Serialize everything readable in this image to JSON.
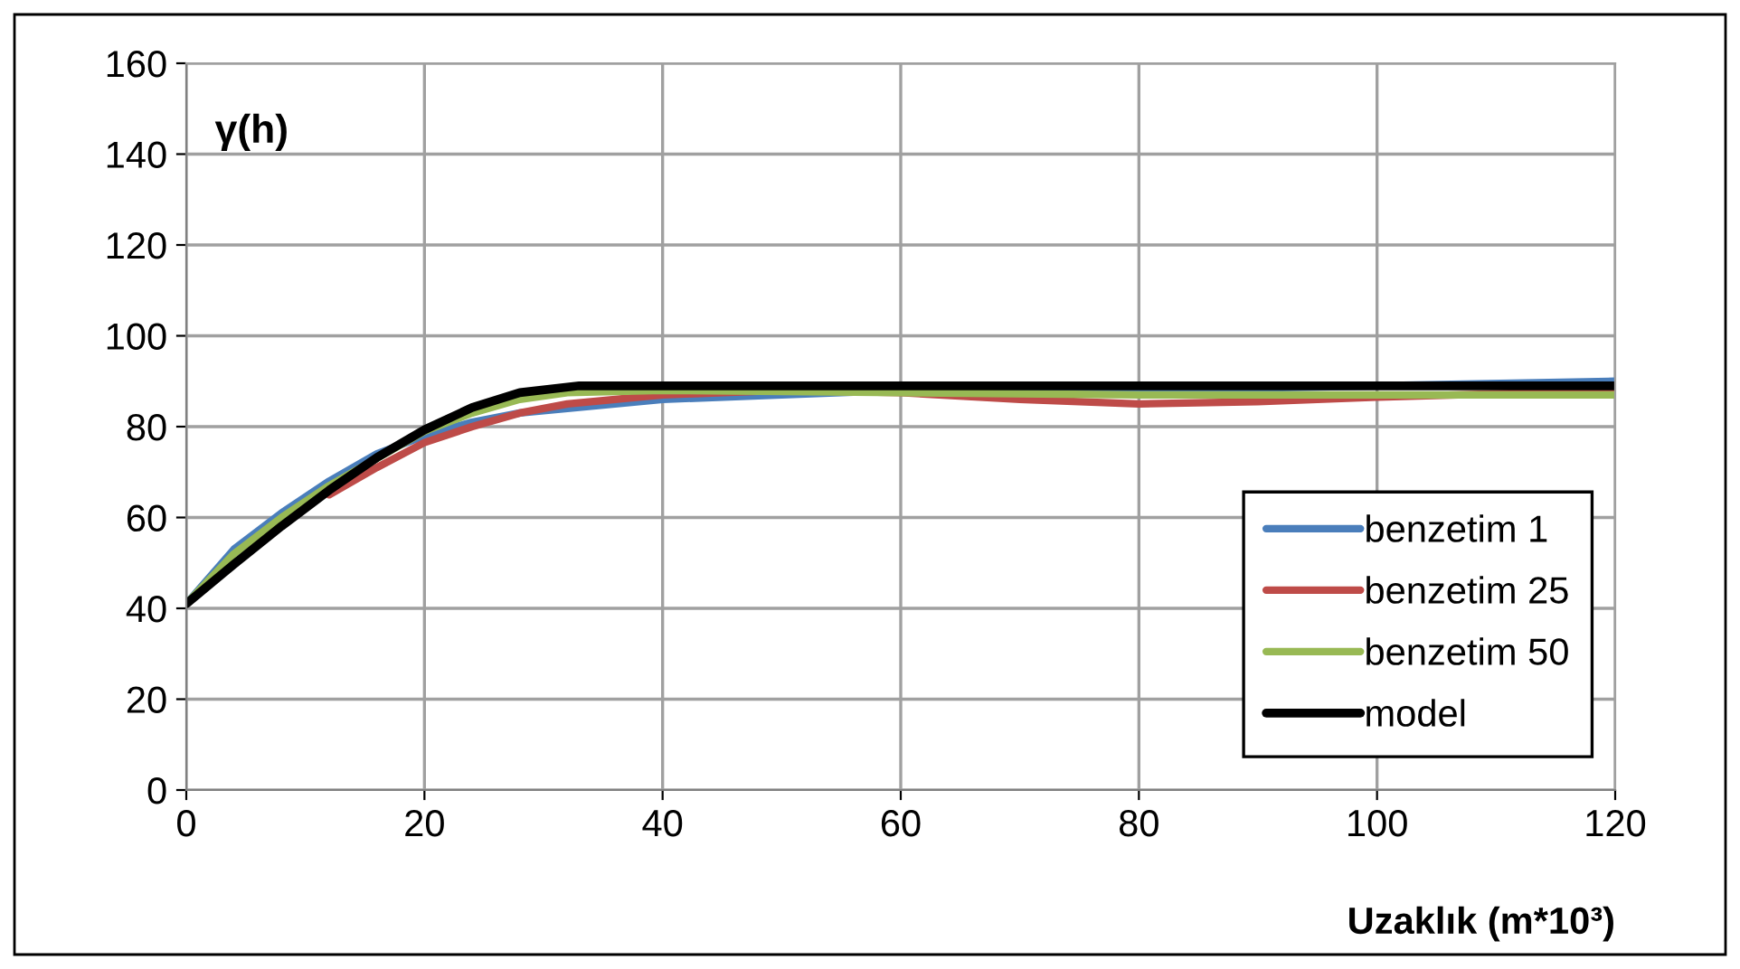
{
  "chart_data": {
    "type": "line",
    "xlabel": "Uzaklık (m*10³)",
    "ylabel": "γ(h)",
    "xlim": [
      0,
      120
    ],
    "ylim": [
      0,
      160
    ],
    "xticks": [
      0,
      20,
      40,
      60,
      80,
      100,
      120
    ],
    "yticks": [
      0,
      20,
      40,
      60,
      80,
      100,
      120,
      140,
      160
    ],
    "grid": true,
    "legend": "bottom right",
    "marker": "none",
    "line_style": "solid",
    "series": [
      {
        "name": "benzetim 1",
        "color": "#4a7ebb",
        "x": [
          0,
          4,
          8,
          12,
          16,
          20,
          24,
          28,
          32,
          40,
          50,
          60,
          80,
          120
        ],
        "values": [
          41,
          53,
          61,
          68,
          74,
          78,
          81,
          83,
          84,
          86,
          87,
          88,
          88,
          90
        ]
      },
      {
        "name": "benzetim 25",
        "color": "#be4b48",
        "x": [
          12,
          16,
          20,
          24,
          28,
          32,
          40,
          50,
          60,
          70,
          80,
          90,
          100,
          120
        ],
        "values": [
          65,
          71,
          76.5,
          80,
          83,
          85,
          87,
          88,
          87.5,
          86,
          85,
          85.5,
          86.5,
          88
        ]
      },
      {
        "name": "benzetim 50",
        "color": "#98b954",
        "x": [
          0,
          4,
          8,
          12,
          16,
          20,
          24,
          28,
          32,
          40,
          60,
          80,
          100,
          120
        ],
        "values": [
          41,
          52,
          60,
          67,
          73,
          79,
          83,
          86,
          87.5,
          88,
          87.5,
          87,
          87,
          87
        ]
      },
      {
        "name": "model",
        "color": "#000000",
        "x": [
          0,
          4,
          8,
          12,
          16,
          20,
          24,
          28,
          33,
          40,
          60,
          80,
          100,
          120
        ],
        "values": [
          41,
          49.7,
          58.1,
          66,
          73.2,
          79.3,
          84.2,
          87.5,
          89,
          89,
          89,
          89,
          89,
          89
        ]
      }
    ]
  }
}
